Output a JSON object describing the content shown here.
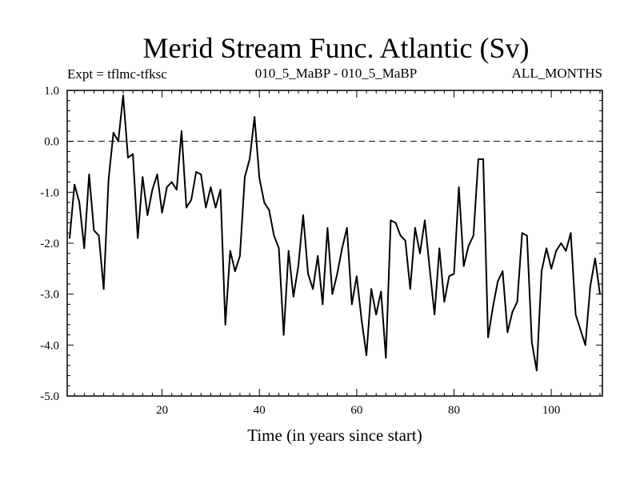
{
  "chart_data": {
    "type": "line",
    "title": "Merid Stream Func. Atlantic (Sv)",
    "subtitle_left": "Expt = tflmc-tfksc",
    "subtitle_center": "010_5_MaBP - 010_5_MaBP",
    "subtitle_right": "ALL_MONTHS",
    "xlabel": "Time (in years since start)",
    "ylabel": "",
    "xlim": [
      0.5,
      110.5
    ],
    "ylim": [
      -5.0,
      1.0
    ],
    "x_ticks": [
      20,
      40,
      60,
      80,
      100
    ],
    "x_tick_labels": [
      "20",
      "40",
      "60",
      "80",
      "100"
    ],
    "y_ticks": [
      1.0,
      0.0,
      -1.0,
      -2.0,
      -3.0,
      -4.0,
      -5.0
    ],
    "y_tick_labels": [
      "1.0",
      "0.0",
      "-1.0",
      "-2.0",
      "-3.0",
      "-4.0",
      "-5.0"
    ],
    "reference_line": 0.0,
    "series": [
      {
        "name": "Merid Stream Func. Atlantic",
        "x": [
          1,
          2,
          3,
          4,
          5,
          6,
          7,
          8,
          9,
          10,
          11,
          12,
          13,
          14,
          15,
          16,
          17,
          18,
          19,
          20,
          21,
          22,
          23,
          24,
          25,
          26,
          27,
          28,
          29,
          30,
          31,
          32,
          33,
          34,
          35,
          36,
          37,
          38,
          39,
          40,
          41,
          42,
          43,
          44,
          45,
          46,
          47,
          48,
          49,
          50,
          51,
          52,
          53,
          54,
          55,
          56,
          57,
          58,
          59,
          60,
          61,
          62,
          63,
          64,
          65,
          66,
          67,
          68,
          69,
          70,
          71,
          72,
          73,
          74,
          75,
          76,
          77,
          78,
          79,
          80,
          81,
          82,
          83,
          84,
          85,
          86,
          87,
          88,
          89,
          90,
          91,
          92,
          93,
          94,
          95,
          96,
          97,
          98,
          99,
          100,
          101,
          102,
          103,
          104,
          105,
          106,
          107,
          108,
          109,
          110
        ],
        "values": [
          -1.9,
          -0.85,
          -1.2,
          -2.1,
          -0.65,
          -1.75,
          -1.85,
          -2.9,
          -0.75,
          0.17,
          0.0,
          0.9,
          -0.32,
          -0.25,
          -1.9,
          -0.7,
          -1.45,
          -0.95,
          -0.65,
          -1.4,
          -0.9,
          -0.8,
          -0.95,
          0.2,
          -1.3,
          -1.15,
          -0.6,
          -0.65,
          -1.3,
          -0.9,
          -1.3,
          -0.95,
          -3.6,
          -2.15,
          -2.55,
          -2.25,
          -0.7,
          -0.35,
          0.48,
          -0.72,
          -1.2,
          -1.35,
          -1.85,
          -2.1,
          -3.8,
          -2.15,
          -3.05,
          -2.45,
          -1.45,
          -2.6,
          -2.9,
          -2.25,
          -3.2,
          -1.7,
          -3.0,
          -2.6,
          -2.1,
          -1.7,
          -3.2,
          -2.65,
          -3.5,
          -4.2,
          -2.9,
          -3.4,
          -2.95,
          -4.25,
          -1.55,
          -1.6,
          -1.85,
          -1.95,
          -2.9,
          -1.7,
          -2.2,
          -1.55,
          -2.5,
          -3.4,
          -2.1,
          -3.15,
          -2.65,
          -2.6,
          -0.9,
          -2.45,
          -2.05,
          -1.85,
          -0.35,
          -0.35,
          -3.85,
          -3.25,
          -2.75,
          -2.55,
          -3.75,
          -3.35,
          -3.15,
          -1.8,
          -1.85,
          -3.95,
          -4.5,
          -2.55,
          -2.1,
          -2.5,
          -2.15,
          -2.0,
          -2.15,
          -1.8,
          -3.4,
          -3.7,
          -4.0,
          -2.85,
          -2.3,
          -3.0
        ]
      }
    ]
  }
}
